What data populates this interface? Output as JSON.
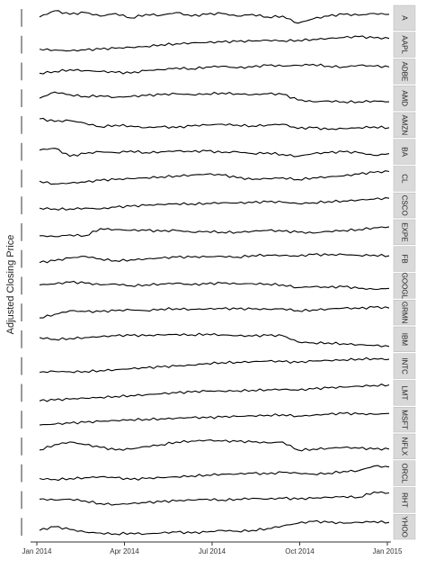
{
  "chart_data": {
    "type": "line",
    "layout": "small-multiples",
    "ylabel": "Adjusted Closing Price",
    "xlabel": "",
    "x_range": [
      "2014-01-01",
      "2015-01-01"
    ],
    "x_ticks": [
      "Jan 2014",
      "Apr 2014",
      "Jul 2014",
      "Oct 2014",
      "Jan 2015"
    ],
    "y_scale": "free per panel",
    "grid": false,
    "legend": "none (strip labels on right)",
    "line_color": "#000000",
    "strip_fill": "#d9d9d9",
    "series": [
      {
        "name": "A",
        "values": [
          0.55,
          0.9,
          0.7,
          0.8,
          0.6,
          0.75,
          0.5,
          0.7,
          0.65,
          0.8,
          0.6,
          0.7,
          0.75,
          0.6,
          0.7,
          0.55,
          0.6,
          0.2,
          0.45,
          0.6,
          0.7,
          0.65,
          0.75,
          0.7
        ]
      },
      {
        "name": "AAPL",
        "values": [
          0.25,
          0.2,
          0.15,
          0.2,
          0.25,
          0.3,
          0.35,
          0.4,
          0.5,
          0.55,
          0.6,
          0.62,
          0.65,
          0.68,
          0.7,
          0.75,
          0.72,
          0.75,
          0.8,
          0.85,
          0.9,
          0.95,
          0.88,
          0.85
        ]
      },
      {
        "name": "ADBE",
        "values": [
          0.4,
          0.5,
          0.6,
          0.55,
          0.5,
          0.45,
          0.4,
          0.55,
          0.6,
          0.7,
          0.65,
          0.75,
          0.8,
          0.7,
          0.75,
          0.85,
          0.8,
          0.85,
          0.9,
          0.8,
          0.75,
          0.85,
          0.8,
          0.75
        ]
      },
      {
        "name": "AMD",
        "values": [
          0.5,
          0.85,
          0.7,
          0.6,
          0.65,
          0.55,
          0.6,
          0.65,
          0.7,
          0.75,
          0.7,
          0.75,
          0.8,
          0.75,
          0.7,
          0.75,
          0.72,
          0.4,
          0.3,
          0.35,
          0.3,
          0.3,
          0.35,
          0.3
        ]
      },
      {
        "name": "AMZN",
        "values": [
          0.85,
          0.7,
          0.75,
          0.6,
          0.4,
          0.5,
          0.45,
          0.35,
          0.4,
          0.35,
          0.45,
          0.5,
          0.55,
          0.5,
          0.45,
          0.5,
          0.55,
          0.3,
          0.35,
          0.25,
          0.3,
          0.35,
          0.4,
          0.35
        ]
      },
      {
        "name": "BA",
        "values": [
          0.6,
          0.7,
          0.25,
          0.4,
          0.5,
          0.45,
          0.55,
          0.45,
          0.5,
          0.55,
          0.5,
          0.55,
          0.45,
          0.5,
          0.4,
          0.45,
          0.35,
          0.25,
          0.4,
          0.45,
          0.5,
          0.45,
          0.3,
          0.4
        ]
      },
      {
        "name": "CL",
        "values": [
          0.35,
          0.2,
          0.25,
          0.3,
          0.4,
          0.45,
          0.5,
          0.55,
          0.6,
          0.65,
          0.7,
          0.75,
          0.7,
          0.55,
          0.45,
          0.5,
          0.55,
          0.45,
          0.55,
          0.6,
          0.65,
          0.75,
          0.85,
          0.9
        ]
      },
      {
        "name": "CSCO",
        "values": [
          0.35,
          0.3,
          0.3,
          0.35,
          0.3,
          0.4,
          0.45,
          0.5,
          0.55,
          0.6,
          0.58,
          0.62,
          0.65,
          0.63,
          0.66,
          0.7,
          0.68,
          0.6,
          0.65,
          0.72,
          0.75,
          0.8,
          0.85,
          0.9
        ]
      },
      {
        "name": "EXPE",
        "values": [
          0.3,
          0.25,
          0.35,
          0.3,
          0.7,
          0.65,
          0.6,
          0.6,
          0.55,
          0.6,
          0.5,
          0.55,
          0.5,
          0.5,
          0.55,
          0.6,
          0.55,
          0.5,
          0.45,
          0.55,
          0.6,
          0.65,
          0.75,
          0.8
        ]
      },
      {
        "name": "FB",
        "values": [
          0.3,
          0.4,
          0.55,
          0.65,
          0.5,
          0.4,
          0.45,
          0.5,
          0.55,
          0.6,
          0.6,
          0.62,
          0.65,
          0.6,
          0.7,
          0.72,
          0.7,
          0.65,
          0.75,
          0.72,
          0.75,
          0.7,
          0.72,
          0.68
        ]
      },
      {
        "name": "GOOGL",
        "values": [
          0.55,
          0.6,
          0.7,
          0.65,
          0.55,
          0.6,
          0.5,
          0.55,
          0.6,
          0.65,
          0.55,
          0.6,
          0.65,
          0.6,
          0.62,
          0.6,
          0.55,
          0.4,
          0.45,
          0.4,
          0.45,
          0.35,
          0.3,
          0.35
        ]
      },
      {
        "name": "GRMN",
        "values": [
          0.2,
          0.4,
          0.6,
          0.55,
          0.55,
          0.6,
          0.65,
          0.6,
          0.7,
          0.72,
          0.68,
          0.7,
          0.72,
          0.7,
          0.7,
          0.68,
          0.72,
          0.6,
          0.65,
          0.7,
          0.75,
          0.72,
          0.8,
          0.75
        ]
      },
      {
        "name": "IBM",
        "values": [
          0.6,
          0.5,
          0.55,
          0.6,
          0.65,
          0.7,
          0.72,
          0.7,
          0.75,
          0.78,
          0.75,
          0.8,
          0.75,
          0.7,
          0.68,
          0.72,
          0.7,
          0.35,
          0.3,
          0.3,
          0.25,
          0.2,
          0.15,
          0.1
        ]
      },
      {
        "name": "INTC",
        "values": [
          0.15,
          0.2,
          0.18,
          0.2,
          0.25,
          0.3,
          0.35,
          0.4,
          0.45,
          0.5,
          0.55,
          0.65,
          0.7,
          0.72,
          0.75,
          0.78,
          0.75,
          0.7,
          0.78,
          0.82,
          0.85,
          0.9,
          0.92,
          0.88
        ]
      },
      {
        "name": "LMT",
        "values": [
          0.05,
          0.1,
          0.15,
          0.2,
          0.25,
          0.3,
          0.35,
          0.4,
          0.45,
          0.5,
          0.55,
          0.6,
          0.6,
          0.62,
          0.65,
          0.68,
          0.7,
          0.65,
          0.72,
          0.78,
          0.82,
          0.88,
          0.92,
          0.95
        ]
      },
      {
        "name": "MSFT",
        "values": [
          0.2,
          0.25,
          0.3,
          0.35,
          0.4,
          0.45,
          0.5,
          0.52,
          0.55,
          0.58,
          0.62,
          0.6,
          0.65,
          0.68,
          0.72,
          0.75,
          0.78,
          0.7,
          0.75,
          0.8,
          0.85,
          0.82,
          0.8,
          0.85
        ]
      },
      {
        "name": "NFLX",
        "values": [
          0.3,
          0.6,
          0.75,
          0.6,
          0.45,
          0.3,
          0.35,
          0.5,
          0.6,
          0.75,
          0.8,
          0.85,
          0.8,
          0.78,
          0.75,
          0.7,
          0.75,
          0.3,
          0.35,
          0.4,
          0.45,
          0.4,
          0.35,
          0.35
        ]
      },
      {
        "name": "ORCL",
        "values": [
          0.2,
          0.15,
          0.2,
          0.25,
          0.3,
          0.25,
          0.15,
          0.2,
          0.25,
          0.3,
          0.35,
          0.4,
          0.45,
          0.45,
          0.5,
          0.45,
          0.55,
          0.5,
          0.45,
          0.5,
          0.6,
          0.65,
          0.9,
          0.85
        ]
      },
      {
        "name": "RHT",
        "values": [
          0.55,
          0.5,
          0.55,
          0.45,
          0.3,
          0.25,
          0.3,
          0.35,
          0.4,
          0.45,
          0.5,
          0.55,
          0.5,
          0.55,
          0.6,
          0.55,
          0.6,
          0.55,
          0.6,
          0.65,
          0.7,
          0.65,
          0.95,
          0.9
        ]
      },
      {
        "name": "YHOO",
        "values": [
          0.3,
          0.5,
          0.35,
          0.2,
          0.15,
          0.1,
          0.15,
          0.1,
          0.15,
          0.2,
          0.15,
          0.2,
          0.3,
          0.25,
          0.3,
          0.4,
          0.55,
          0.7,
          0.8,
          0.75,
          0.7,
          0.75,
          0.8,
          0.75
        ]
      }
    ]
  }
}
